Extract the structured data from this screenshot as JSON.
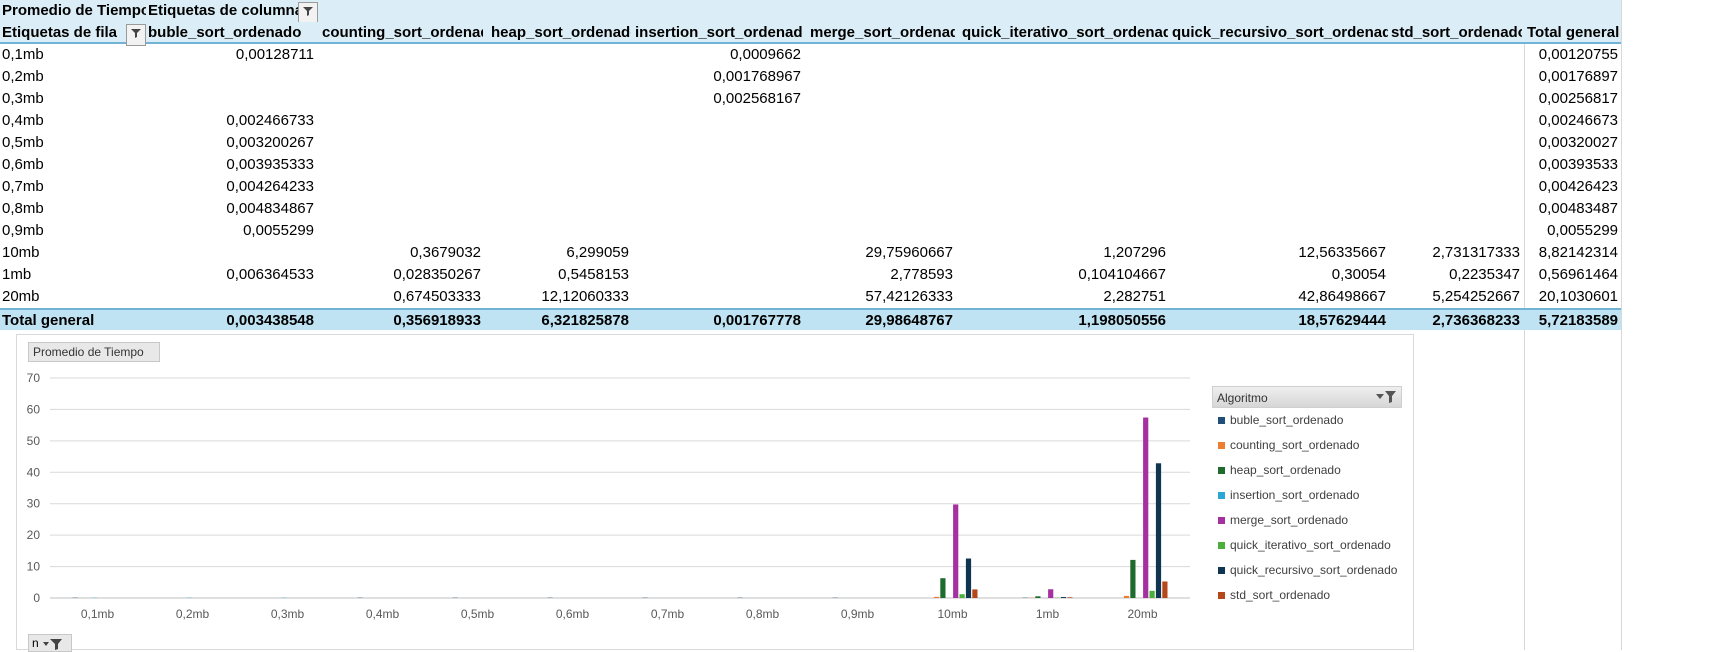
{
  "pivot": {
    "corner_label": "Promedio de Tiempo",
    "column_labels_title": "Etiquetas de columna",
    "row_labels_title": "Etiquetas de fila",
    "columns": [
      "buble_sort_ordenado",
      "counting_sort_ordenado",
      "heap_sort_ordenado",
      "insertion_sort_ordenado",
      "merge_sort_ordenado",
      "quick_iterativo_sort_ordenado",
      "quick_recursivo_sort_ordenado",
      "std_sort_ordenado",
      "Total general"
    ],
    "rows": [
      {
        "label": "0,1mb",
        "cells": [
          "0,00128711",
          "",
          "",
          "0,0009662",
          "",
          "",
          "",
          "",
          "0,00120755"
        ]
      },
      {
        "label": "0,2mb",
        "cells": [
          "",
          "",
          "",
          "0,001768967",
          "",
          "",
          "",
          "",
          "0,00176897"
        ]
      },
      {
        "label": "0,3mb",
        "cells": [
          "",
          "",
          "",
          "0,002568167",
          "",
          "",
          "",
          "",
          "0,00256817"
        ]
      },
      {
        "label": "0,4mb",
        "cells": [
          "0,002466733",
          "",
          "",
          "",
          "",
          "",
          "",
          "",
          "0,00246673"
        ]
      },
      {
        "label": "0,5mb",
        "cells": [
          "0,003200267",
          "",
          "",
          "",
          "",
          "",
          "",
          "",
          "0,00320027"
        ]
      },
      {
        "label": "0,6mb",
        "cells": [
          "0,003935333",
          "",
          "",
          "",
          "",
          "",
          "",
          "",
          "0,00393533"
        ]
      },
      {
        "label": "0,7mb",
        "cells": [
          "0,004264233",
          "",
          "",
          "",
          "",
          "",
          "",
          "",
          "0,00426423"
        ]
      },
      {
        "label": "0,8mb",
        "cells": [
          "0,004834867",
          "",
          "",
          "",
          "",
          "",
          "",
          "",
          "0,00483487"
        ]
      },
      {
        "label": "0,9mb",
        "cells": [
          "0,0055299",
          "",
          "",
          "",
          "",
          "",
          "",
          "",
          "0,0055299"
        ]
      },
      {
        "label": "10mb",
        "cells": [
          "",
          "0,3679032",
          "6,299059",
          "",
          "29,75960667",
          "1,207296",
          "12,56335667",
          "2,731317333",
          "8,82142314"
        ]
      },
      {
        "label": "1mb",
        "cells": [
          "0,006364533",
          "0,028350267",
          "0,5458153",
          "",
          "2,778593",
          "0,104104667",
          "0,30054",
          "0,2235347",
          "0,56961464"
        ]
      },
      {
        "label": "20mb",
        "cells": [
          "",
          "0,674503333",
          "12,12060333",
          "",
          "57,42126333",
          "2,282751",
          "42,86498667",
          "5,254252667",
          "20,1030601"
        ]
      }
    ],
    "total": {
      "label": "Total general",
      "cells": [
        "0,003438548",
        "0,356918933",
        "6,321825878",
        "0,001767778",
        "29,98648767",
        "1,198050556",
        "18,57629444",
        "2,736368233",
        "5,72183589"
      ]
    }
  },
  "chart_field_button": "Promedio de Tiempo",
  "row_field_button": "n",
  "legend_title": "Algoritmo",
  "colors": {
    "buble_sort_ordenado": "#1f4e79",
    "counting_sort_ordenado": "#ed7d31",
    "heap_sort_ordenado": "#1e6b2e",
    "insertion_sort_ordenado": "#2aa7d6",
    "merge_sort_ordenado": "#a5309f",
    "quick_iterativo_sort_ordenado": "#4caf3c",
    "quick_recursivo_sort_ordenado": "#0f3550",
    "std_sort_ordenado": "#b5481a",
    "header_fill": "#dbeef7",
    "total_fill": "#bfe3f3"
  },
  "chart_data": {
    "type": "bar",
    "categories": [
      "0,1mb",
      "0,2mb",
      "0,3mb",
      "0,4mb",
      "0,5mb",
      "0,6mb",
      "0,7mb",
      "0,8mb",
      "0,9mb",
      "10mb",
      "1mb",
      "20mb"
    ],
    "ylim": [
      0,
      70
    ],
    "yticks": [
      0,
      10,
      20,
      30,
      40,
      50,
      60,
      70
    ],
    "grid": true,
    "legend": "right",
    "series": [
      {
        "name": "buble_sort_ordenado",
        "values": [
          0.00128711,
          null,
          null,
          0.002466733,
          0.003200267,
          0.003935333,
          0.004264233,
          0.004834867,
          0.0055299,
          null,
          0.006364533,
          null
        ]
      },
      {
        "name": "counting_sort_ordenado",
        "values": [
          null,
          null,
          null,
          null,
          null,
          null,
          null,
          null,
          null,
          0.3679032,
          0.028350267,
          0.674503333
        ]
      },
      {
        "name": "heap_sort_ordenado",
        "values": [
          null,
          null,
          null,
          null,
          null,
          null,
          null,
          null,
          null,
          6.299059,
          0.5458153,
          12.12060333
        ]
      },
      {
        "name": "insertion_sort_ordenado",
        "values": [
          0.0009662,
          0.001768967,
          0.002568167,
          null,
          null,
          null,
          null,
          null,
          null,
          null,
          null,
          null
        ]
      },
      {
        "name": "merge_sort_ordenado",
        "values": [
          null,
          null,
          null,
          null,
          null,
          null,
          null,
          null,
          null,
          29.75960667,
          2.778593,
          57.42126333
        ]
      },
      {
        "name": "quick_iterativo_sort_ordenado",
        "values": [
          null,
          null,
          null,
          null,
          null,
          null,
          null,
          null,
          null,
          1.207296,
          0.104104667,
          2.282751
        ]
      },
      {
        "name": "quick_recursivo_sort_ordenado",
        "values": [
          null,
          null,
          null,
          null,
          null,
          null,
          null,
          null,
          null,
          12.56335667,
          0.30054,
          42.86498667
        ]
      },
      {
        "name": "std_sort_ordenado",
        "values": [
          null,
          null,
          null,
          null,
          null,
          null,
          null,
          null,
          null,
          2.731317333,
          0.2235347,
          5.254252667
        ]
      }
    ]
  }
}
